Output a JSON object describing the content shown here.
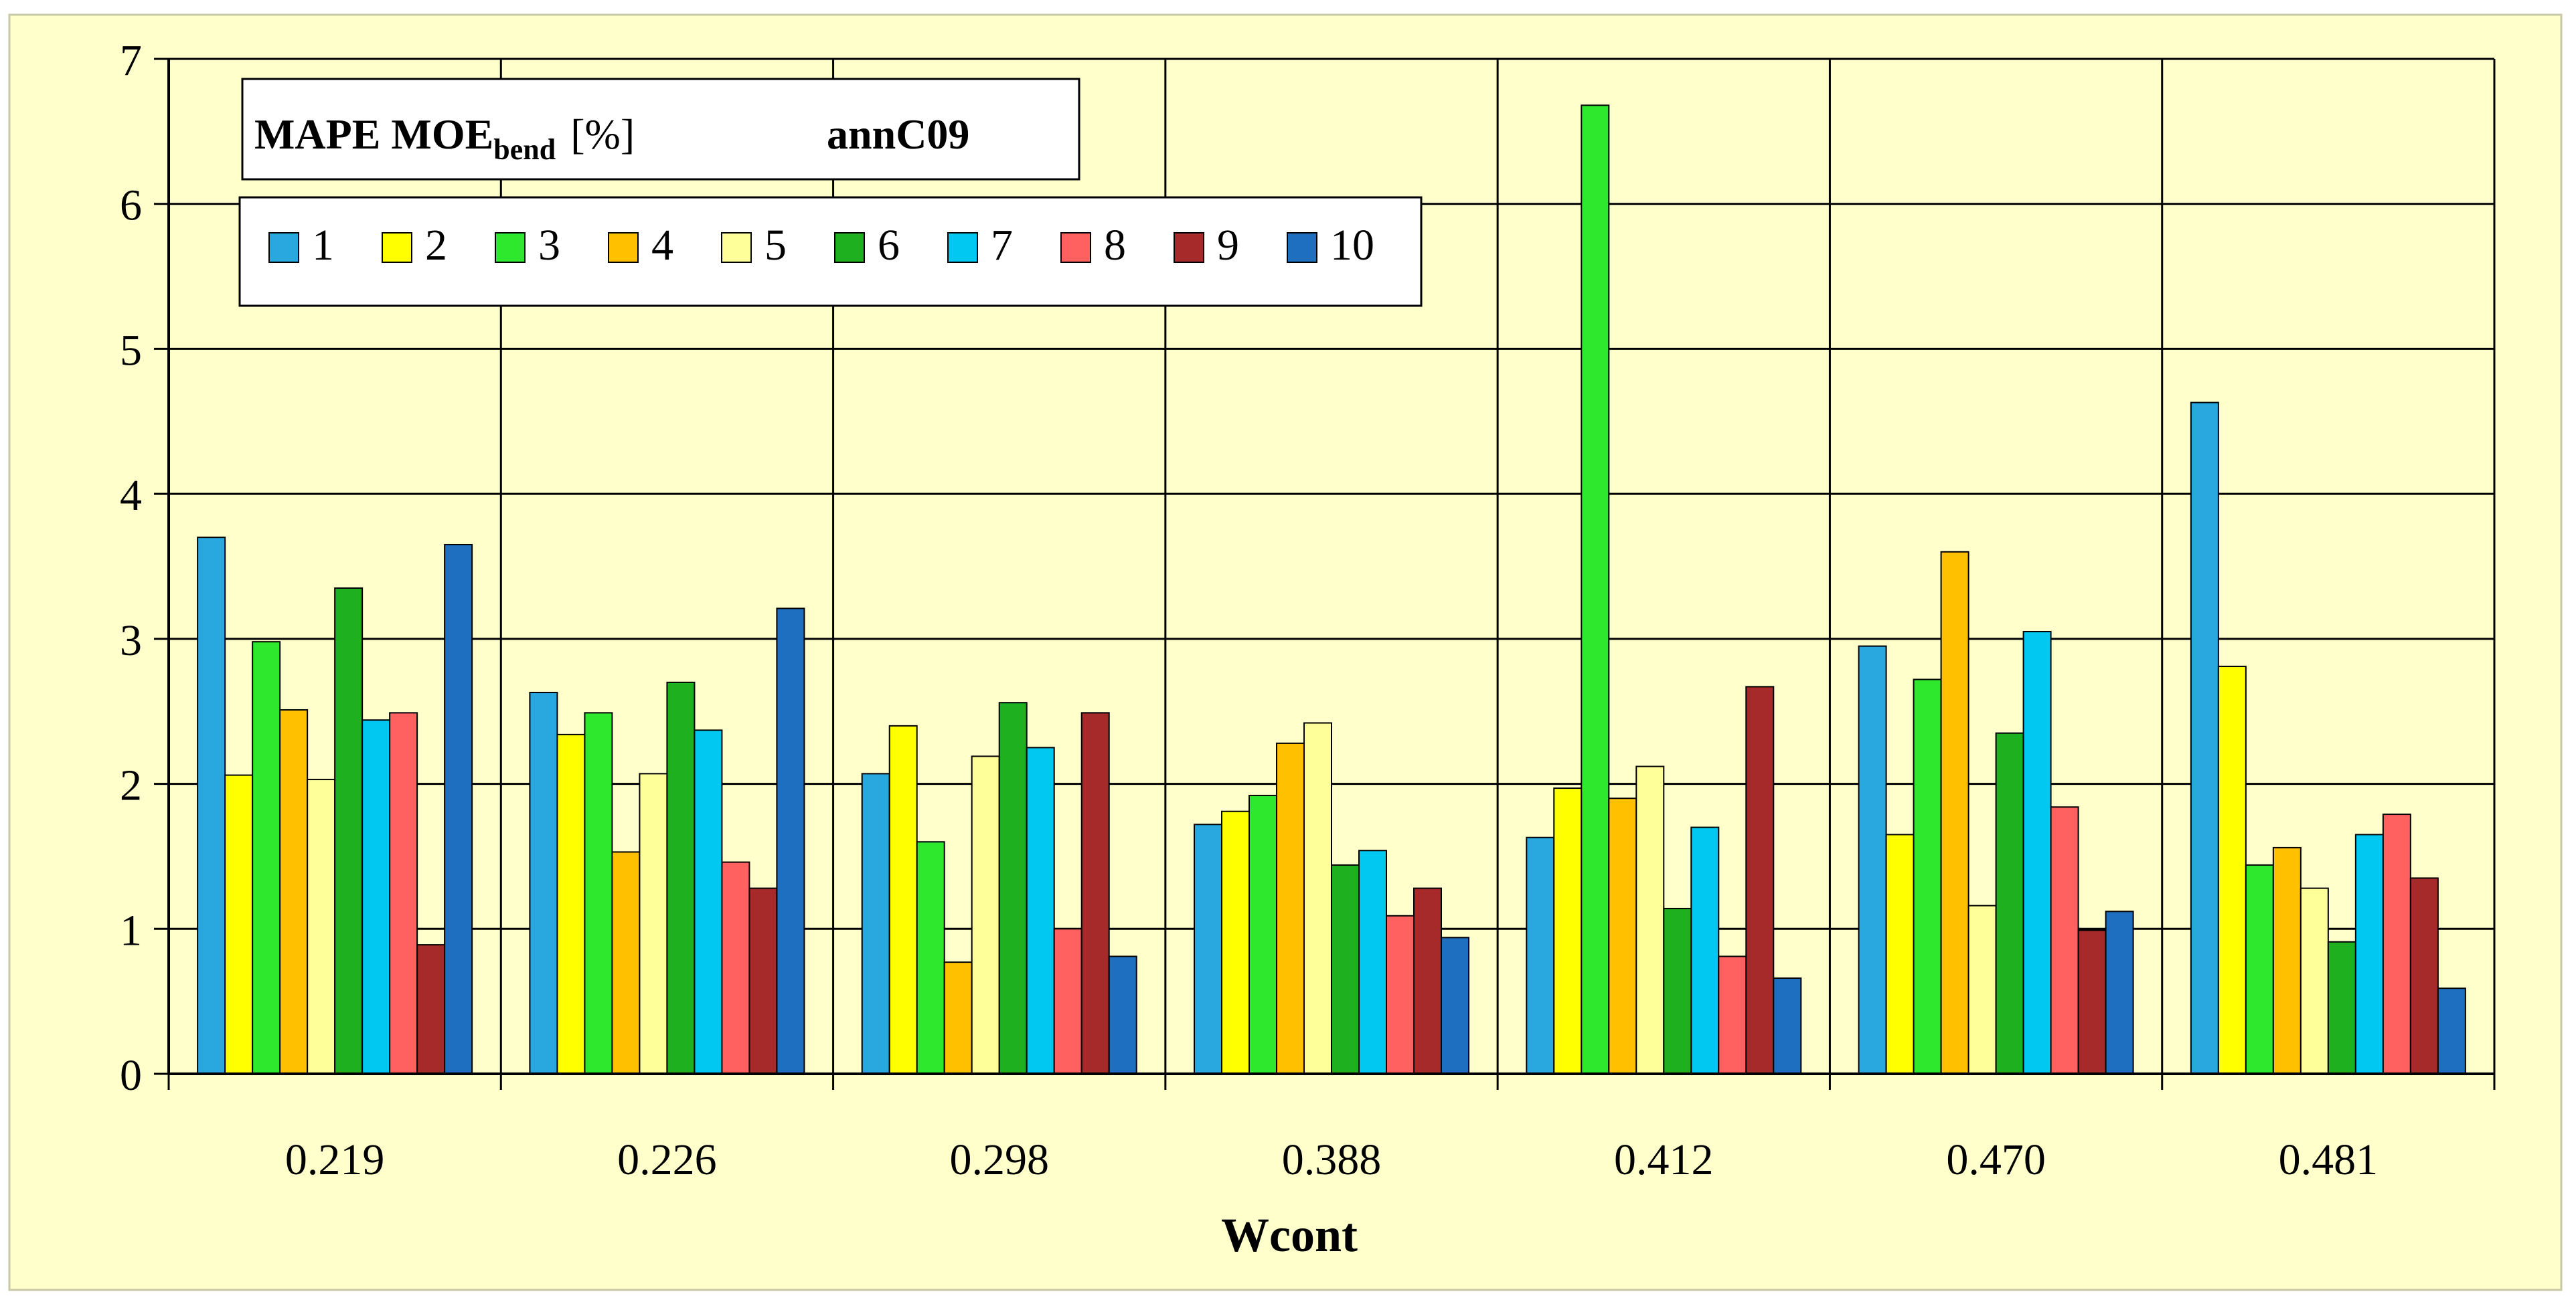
{
  "chart_data": {
    "type": "bar",
    "title": "MAPE MOE",
    "title_subscript": "bend",
    "title_unit": "[%]",
    "model_name": "annC09",
    "xlabel": "Wcont",
    "ylabel": "",
    "ylim": [
      0,
      7
    ],
    "yticks": [
      "0",
      "1",
      "2",
      "3",
      "4",
      "5",
      "6",
      "7"
    ],
    "grid": true,
    "legend_position": "top-left",
    "categories": [
      "0.219",
      "0.226",
      "0.298",
      "0.388",
      "0.412",
      "0.470",
      "0.481"
    ],
    "series": [
      {
        "name": "1",
        "color": "#29A8E0",
        "values": [
          3.7,
          2.63,
          2.07,
          1.72,
          1.63,
          2.95,
          4.63
        ]
      },
      {
        "name": "2",
        "color": "#FFFF00",
        "values": [
          2.06,
          2.34,
          2.4,
          1.81,
          1.97,
          1.65,
          2.81
        ]
      },
      {
        "name": "3",
        "color": "#2EE82E",
        "values": [
          2.98,
          2.49,
          1.6,
          1.92,
          6.68,
          2.72,
          1.44
        ]
      },
      {
        "name": "4",
        "color": "#FFC000",
        "values": [
          2.51,
          1.53,
          0.77,
          2.28,
          1.9,
          3.6,
          1.56
        ]
      },
      {
        "name": "5",
        "color": "#FFFF99",
        "values": [
          2.03,
          2.07,
          2.19,
          2.42,
          2.12,
          1.16,
          1.28
        ]
      },
      {
        "name": "6",
        "color": "#1FB01F",
        "values": [
          3.35,
          2.7,
          2.56,
          1.44,
          1.14,
          2.35,
          0.91
        ]
      },
      {
        "name": "7",
        "color": "#00C8F0",
        "values": [
          2.44,
          2.37,
          2.25,
          1.54,
          1.7,
          3.05,
          1.65
        ]
      },
      {
        "name": "8",
        "color": "#FF6060",
        "values": [
          2.49,
          1.46,
          1.0,
          1.09,
          0.81,
          1.84,
          1.79
        ]
      },
      {
        "name": "9",
        "color": "#A62A2A",
        "values": [
          0.89,
          1.28,
          2.49,
          1.28,
          2.67,
          0.99,
          1.35
        ]
      },
      {
        "name": "10",
        "color": "#1F6FC0",
        "values": [
          3.65,
          3.21,
          0.81,
          0.94,
          0.66,
          1.12,
          0.59
        ]
      }
    ],
    "colors": {
      "plot_background": "#FFFFCC",
      "page_background": "#FFFFFF",
      "axis": "#000000",
      "grid": "#000000"
    }
  }
}
